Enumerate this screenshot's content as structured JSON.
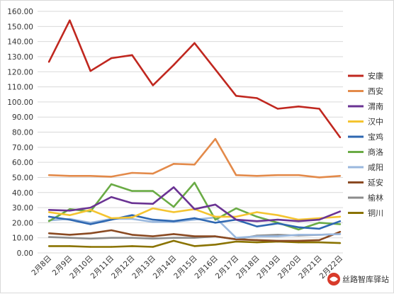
{
  "chart_data": {
    "type": "line",
    "categories": [
      "2月8日",
      "2月9日",
      "2月10日",
      "2月11日",
      "2月12日",
      "2月13日",
      "2月14日",
      "2月15日",
      "2月16日",
      "2月17日",
      "2月18日",
      "2月19日",
      "2月20日",
      "2月21日",
      "2月22日"
    ],
    "ylim": [
      0,
      160
    ],
    "yticks": [
      "0.00",
      "10.00",
      "20.00",
      "30.00",
      "40.00",
      "50.00",
      "60.00",
      "70.00",
      "80.00",
      "90.00",
      "100.00",
      "110.00",
      "120.00",
      "130.00",
      "140.00",
      "150.00",
      "160.00"
    ],
    "grid": true,
    "legend_position": "right",
    "series": [
      {
        "name": "安康",
        "color": "#c0271f",
        "values": [
          126.5,
          154,
          120.5,
          129,
          131,
          111,
          124.5,
          139,
          121.5,
          104,
          102.5,
          95.5,
          97,
          95.5,
          76.5
        ]
      },
      {
        "name": "西安",
        "color": "#e38a4a",
        "values": [
          51.5,
          51,
          51,
          50.5,
          53,
          52.5,
          59,
          58.5,
          75.5,
          51.5,
          51,
          51.5,
          51.5,
          50,
          51
        ]
      },
      {
        "name": "渭南",
        "color": "#6a3393",
        "values": [
          28.5,
          28,
          30,
          37,
          33,
          32.5,
          43.5,
          29,
          32,
          22,
          21,
          22,
          21,
          22,
          27.5
        ]
      },
      {
        "name": "汉中",
        "color": "#f4c430",
        "values": [
          27,
          25,
          28.5,
          23,
          23.5,
          29.5,
          27,
          29,
          24,
          24,
          27,
          25,
          22,
          23,
          24
        ]
      },
      {
        "name": "宝鸡",
        "color": "#2e67b1",
        "values": [
          24,
          22,
          19,
          22,
          25,
          22,
          21,
          23,
          20,
          22,
          17.5,
          19.5,
          17,
          16,
          21
        ]
      },
      {
        "name": "商洛",
        "color": "#6aab45",
        "values": [
          21,
          29,
          27.5,
          45.5,
          41,
          41,
          30.5,
          46.5,
          22,
          29.5,
          24,
          20,
          15.5,
          20,
          19
        ]
      },
      {
        "name": "咸阳",
        "color": "#9ab8de",
        "values": [
          21.5,
          22.5,
          20,
          22.5,
          22.5,
          20.5,
          20.5,
          22,
          23.5,
          10,
          11,
          11,
          12,
          12,
          12.5
        ]
      },
      {
        "name": "延安",
        "color": "#8a4a22",
        "values": [
          13,
          12,
          13,
          15,
          12,
          11,
          12.5,
          11,
          11,
          9,
          8.5,
          8,
          8,
          8.5,
          14
        ]
      },
      {
        "name": "榆林",
        "color": "#8c8c8c",
        "values": [
          10.5,
          10,
          9.5,
          10,
          10,
          9.5,
          10,
          10,
          11,
          9,
          11.5,
          12,
          11.5,
          12,
          12.5
        ]
      },
      {
        "name": "铜川",
        "color": "#8a7300",
        "values": [
          4.5,
          4.5,
          4,
          4,
          4.5,
          4,
          8,
          4.5,
          5.5,
          7.5,
          7,
          7.5,
          7,
          7,
          6.5
        ]
      }
    ]
  },
  "watermark": {
    "text": "丝路智库驿站"
  }
}
